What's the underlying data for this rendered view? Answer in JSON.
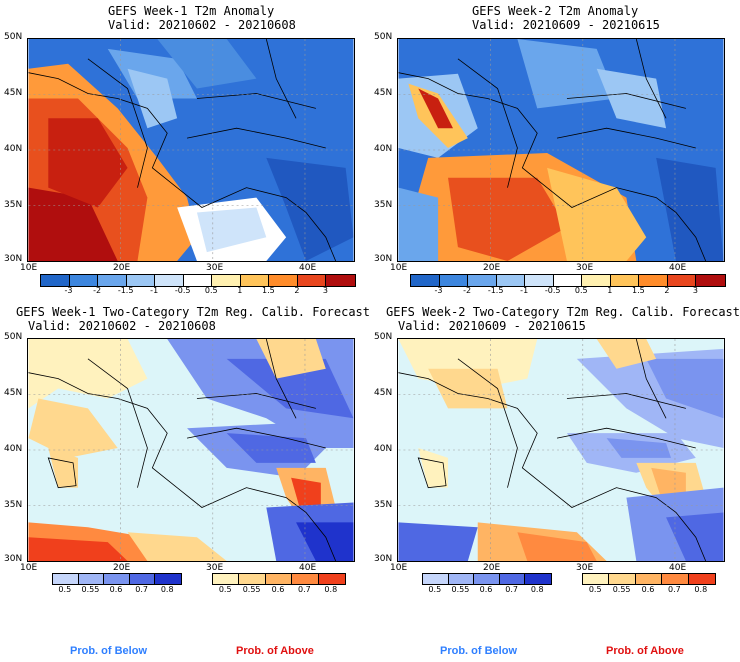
{
  "panels": [
    {
      "id": "week1-anomaly",
      "title_line1": "GEFS Week-1 T2m Anomaly",
      "title_line2": "Valid: 20210602 - 20210608",
      "kind": "anomaly"
    },
    {
      "id": "week2-anomaly",
      "title_line1": "GEFS Week-2 T2m Anomaly",
      "title_line2": "Valid: 20210609 - 20210615",
      "kind": "anomaly"
    },
    {
      "id": "week1-prob",
      "title_line1": "GEFS Week-1 Two-Category T2m Reg. Calib. Forecast",
      "title_line2": "Valid: 20210602 - 20210608",
      "kind": "probability"
    },
    {
      "id": "week2-prob",
      "title_line1": "GEFS Week-2 Two-Category T2m Reg. Calib. Forecast",
      "title_line2": "Valid: 20210609 - 20210615",
      "kind": "probability"
    }
  ],
  "axes": {
    "lat_ticks": [
      "50N",
      "45N",
      "40N",
      "35N",
      "30N"
    ],
    "lon_ticks": [
      "10E",
      "20E",
      "30E",
      "40E"
    ]
  },
  "anomaly_colorbar": {
    "labels": [
      "-3",
      "-2",
      "-1.5",
      "-1",
      "-0.5",
      "0.5",
      "1",
      "1.5",
      "2",
      "3"
    ],
    "colors": [
      "#2166c8",
      "#3d86de",
      "#6aa6ec",
      "#9cc7f4",
      "#cfe4fa",
      "#ffffff",
      "#fff0b0",
      "#ffc45a",
      "#ff8c2a",
      "#e8461e",
      "#b00e0e"
    ]
  },
  "prob_below_colorbar": {
    "labels": [
      "0.5",
      "0.55",
      "0.6",
      "0.7",
      "0.8"
    ],
    "colors": [
      "#c6d6fb",
      "#a0b6f6",
      "#7a94ef",
      "#4f68e3",
      "#1f33cc"
    ]
  },
  "prob_above_colorbar": {
    "labels": [
      "0.5",
      "0.55",
      "0.6",
      "0.7",
      "0.8"
    ],
    "colors": [
      "#fff2be",
      "#ffd88e",
      "#ffb463",
      "#ff8a40",
      "#f0401c"
    ]
  },
  "legend": {
    "below": "Prob. of Below",
    "above": "Prob. of Above",
    "below_color": "#2f7fff",
    "above_color": "#e01010"
  },
  "map_colors": {
    "sea_light": "#d8f6fa",
    "land_prob": "#e6f8fb"
  }
}
